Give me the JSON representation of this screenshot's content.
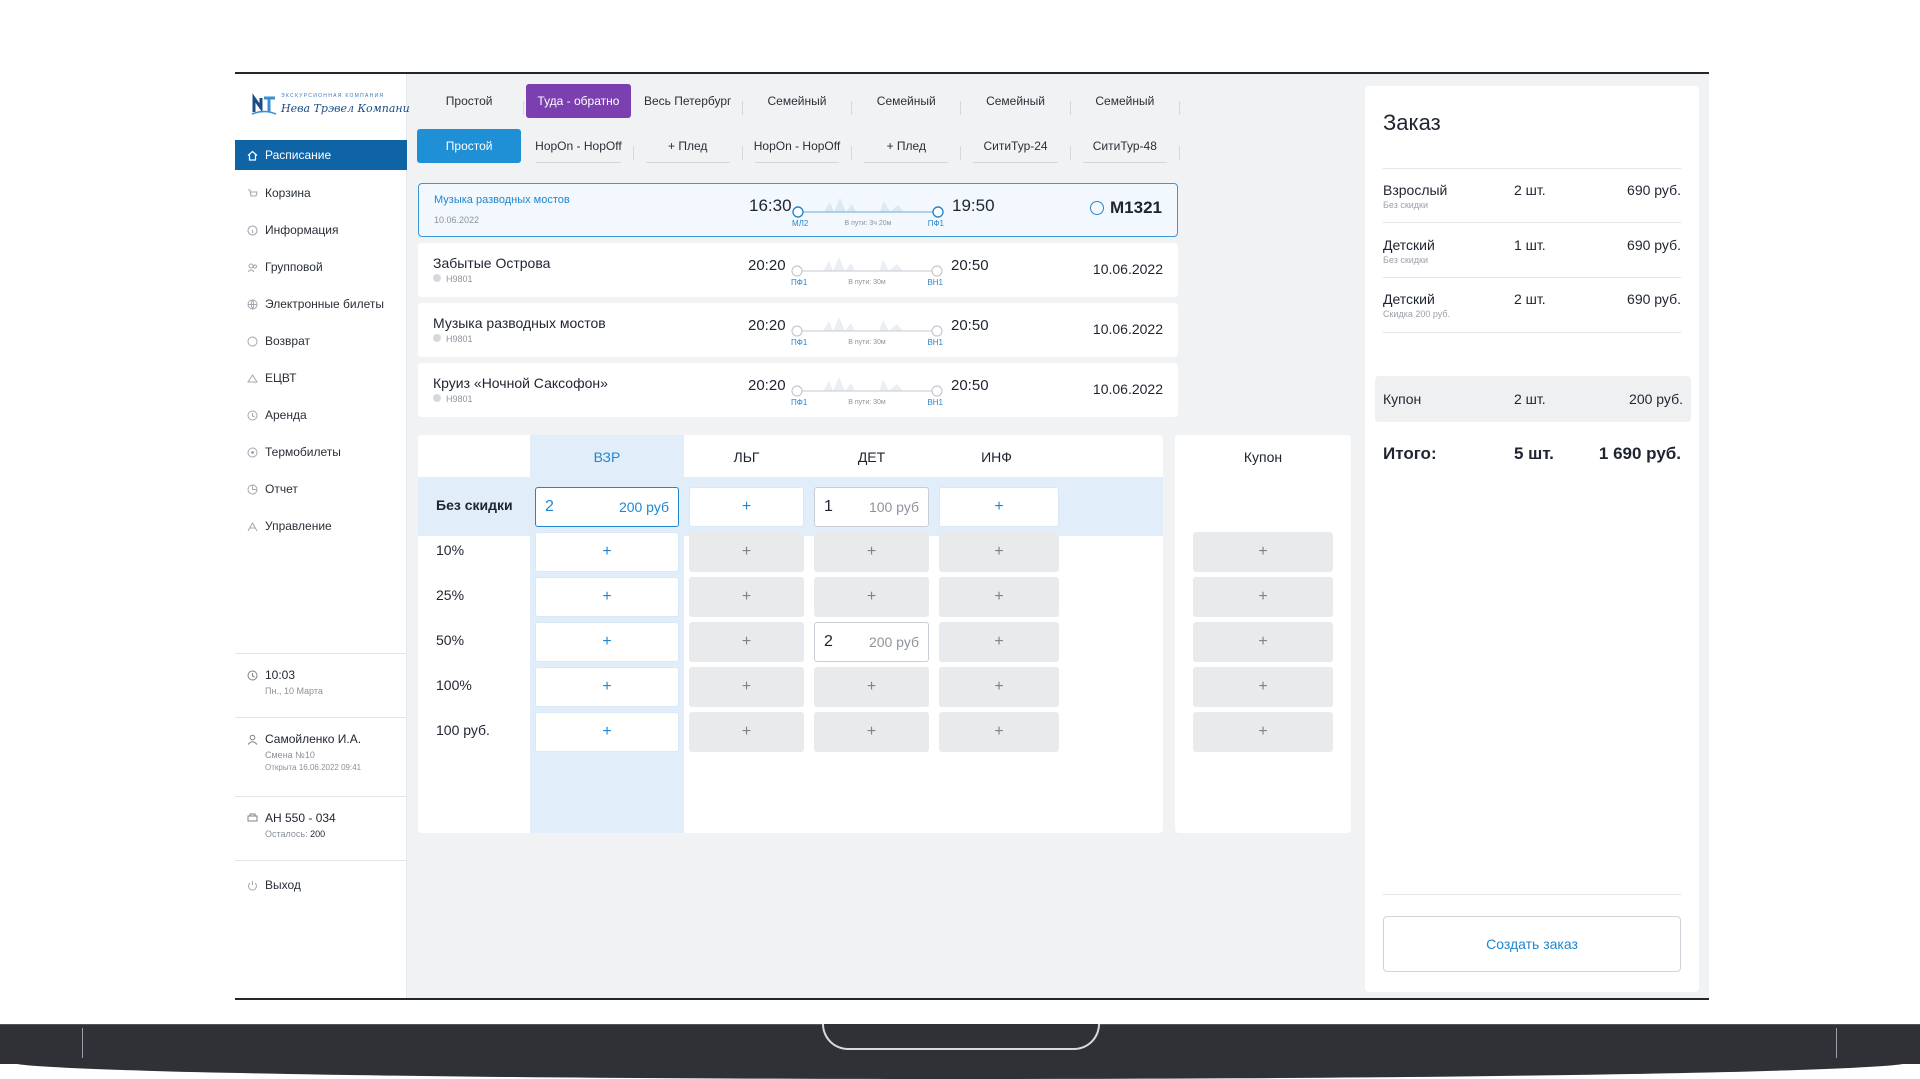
{
  "brand": {
    "tagline": "ЭКСКУРСИОННАЯ КОМПАНИЯ",
    "name": "Нева Трэвел Компани"
  },
  "sidebar": {
    "items": [
      {
        "label": "Расписание",
        "icon": "home-icon"
      },
      {
        "label": "Корзина",
        "icon": "cart-icon"
      },
      {
        "label": "Информация",
        "icon": "info-icon"
      },
      {
        "label": "Групповой",
        "icon": "group-icon"
      },
      {
        "label": "Электронные билеты",
        "icon": "globe-icon"
      },
      {
        "label": "Возврат",
        "icon": "return-icon"
      },
      {
        "label": "ЕЦВТ",
        "icon": "ticket-icon"
      },
      {
        "label": "Аренда",
        "icon": "rent-icon"
      },
      {
        "label": "Термобилеты",
        "icon": "thermo-icon"
      },
      {
        "label": "Отчет",
        "icon": "report-icon"
      },
      {
        "label": "Управление",
        "icon": "manage-icon"
      }
    ],
    "clock": {
      "time": "10:03",
      "date": "Пн., 10 Марта"
    },
    "user": {
      "name": "Самойленко И.А.",
      "shift": "Смена №10",
      "opened": "Открыта 16.06.2022 09:41"
    },
    "device": {
      "id": "АН 550 - 034",
      "remaining_label": "Осталось:",
      "remaining": "200"
    },
    "logout": "Выход"
  },
  "tabs_top": [
    "Простой",
    "Туда - обратно",
    "Весь Петербург",
    "Семейный",
    "Семейный",
    "Семейный",
    "Семейный"
  ],
  "tabs_bottom": [
    "Простой",
    "HopOn - HopOff",
    "+ Плед",
    "HopOn - HopOff",
    "+ Плед",
    "СитиТур-24",
    "СитиТур-48"
  ],
  "trips": [
    {
      "name": "Музыка разводных мостов",
      "code": "10.06.2022",
      "dep": "16:30",
      "arr": "19:50",
      "from": "МЛ2",
      "to": "ПФ1",
      "duration": "В пути: 3ч 20м",
      "right": "M1321"
    },
    {
      "name": "Забытые Острова",
      "code": "Н9801",
      "dep": "20:20",
      "arr": "20:50",
      "from": "ПФ1",
      "to": "ВН1",
      "duration": "В пути: 30м",
      "right": "10.06.2022"
    },
    {
      "name": "Музыка разводных мостов",
      "code": "Н9801",
      "dep": "20:20",
      "arr": "20:50",
      "from": "ПФ1",
      "to": "ВН1",
      "duration": "В пути: 30м",
      "right": "10.06.2022"
    },
    {
      "name": "Круиз «Ночной Саксофон»",
      "code": "Н9801",
      "dep": "20:20",
      "arr": "20:50",
      "from": "ПФ1",
      "to": "ВН1",
      "duration": "В пути: 30м",
      "right": "10.06.2022"
    }
  ],
  "grid": {
    "columns": [
      "ВЗР",
      "ЛЬГ",
      "ДЕТ",
      "ИНФ"
    ],
    "coupon_header": "Купон",
    "rows": [
      "Без скидки",
      "10%",
      "25%",
      "50%",
      "100%",
      "100 руб."
    ],
    "plus": "+",
    "vzr_bez": {
      "qty": "2",
      "price": "200 руб"
    },
    "det_bez": {
      "qty": "1",
      "price": "100 руб"
    },
    "det_50": {
      "qty": "2",
      "price": "200 руб"
    }
  },
  "order": {
    "title": "Заказ",
    "items": [
      {
        "name": "Взрослый",
        "sub": "Без скидки",
        "qty": "2 шт.",
        "price": "690 руб."
      },
      {
        "name": "Детский",
        "sub": "Без скидки",
        "qty": "1 шт.",
        "price": "690 руб."
      },
      {
        "name": "Детский",
        "sub": "Скидка 200 руб.",
        "qty": "2 шт.",
        "price": "690 руб."
      }
    ],
    "coupon": {
      "name": "Купон",
      "qty": "2 шт.",
      "price": "200 руб."
    },
    "total": {
      "label": "Итого:",
      "qty": "5 шт.",
      "price": "1 690 руб."
    },
    "create_button": "Создать заказ"
  },
  "colors": {
    "primary": "#0f64a6",
    "accent_blue": "#1f86cf",
    "accent_purple": "#7b3fb0"
  }
}
